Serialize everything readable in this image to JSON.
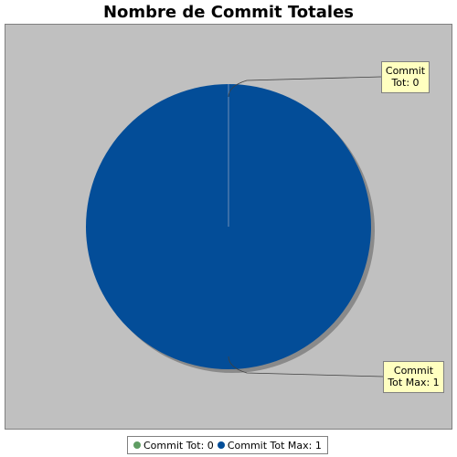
{
  "chart_data": {
    "type": "pie",
    "title": "Nombre de Commit Totales",
    "slices": [
      {
        "name": "Commit Tot",
        "value": 0,
        "label": "Commit\nTot: 0",
        "legend": "Commit Tot: 0",
        "color": "#5f9d63"
      },
      {
        "name": "Commit Tot Max",
        "value": 1,
        "label": "Commit\nTot Max: 1",
        "legend": "Commit Tot Max: 1",
        "color": "#034d98"
      }
    ],
    "legend_position": "bottom",
    "plot_background": "#c0c0c0",
    "label_background": "#ffffc0"
  }
}
